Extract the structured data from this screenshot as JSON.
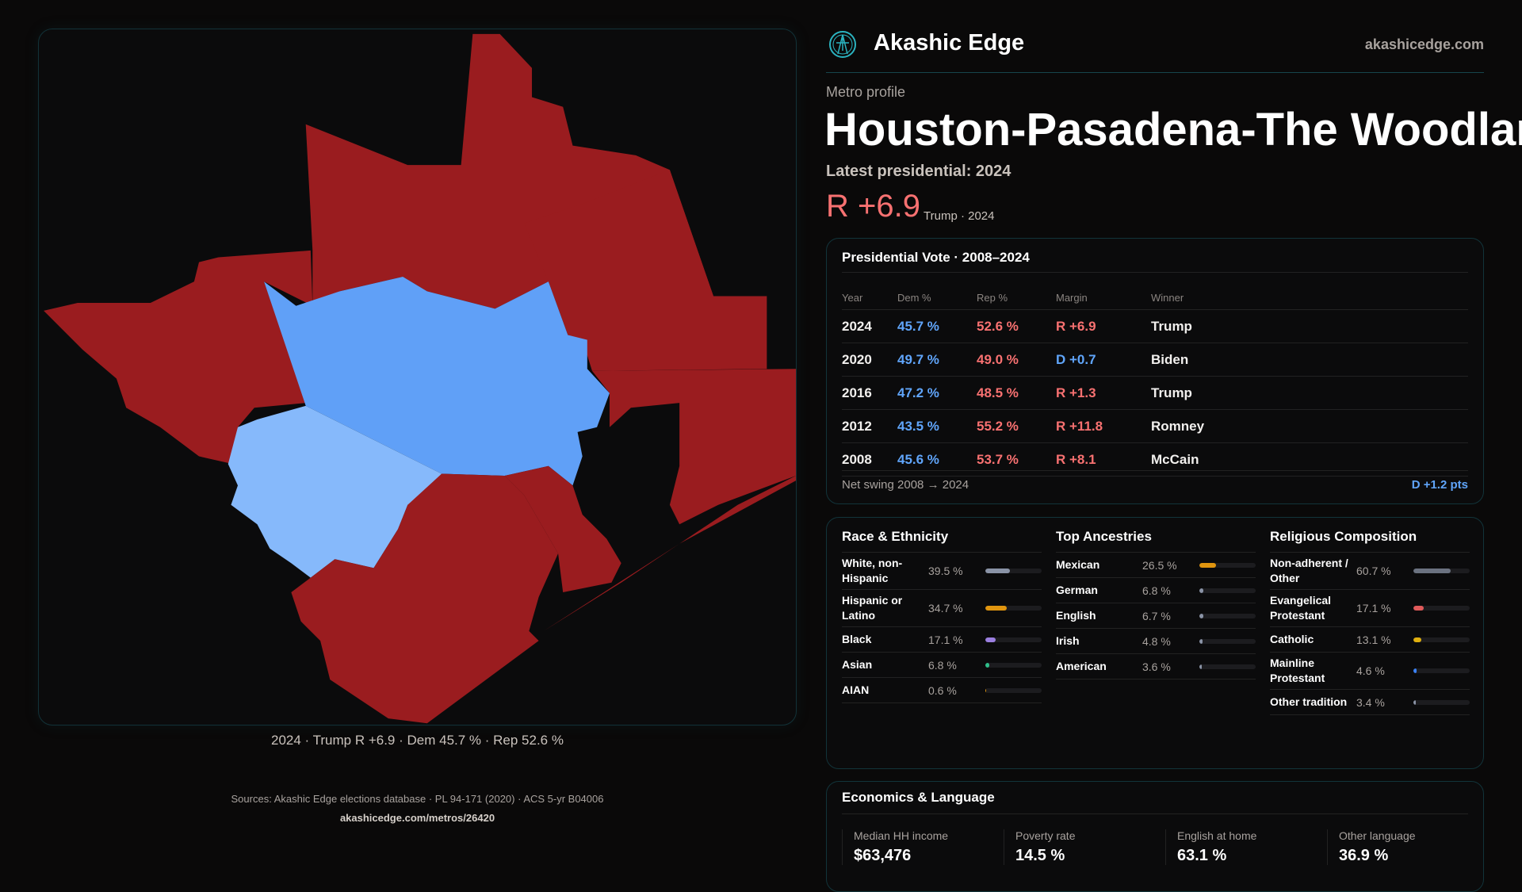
{
  "brand": {
    "name": "Akashic Edge",
    "url": "akashicedge.com",
    "logo_icon": "akashic-edge-logo-icon"
  },
  "header": {
    "kicker": "Metro profile",
    "title": "Houston-Pasadena-The Woodlands",
    "latest_label": "Latest presidential: 2024",
    "margin": "R +6.9",
    "margin_sub": "Trump · 2024"
  },
  "map": {
    "caption": "2024 · Trump R +6.9 · Dem 45.7 % · Rep 52.6 %",
    "colors": {
      "rep": "#9a1c1f",
      "dem": "#60a0f7",
      "dem_lean": "#86b9fb"
    }
  },
  "vote": {
    "title": "Presidential Vote · 2008–2024",
    "headers": [
      "Year",
      "Dem %",
      "Rep %",
      "Margin",
      "Winner"
    ],
    "rows": [
      {
        "year": "2024",
        "dem": "45.7 %",
        "rep": "52.6 %",
        "margin": "R +6.9",
        "winner": "Trump",
        "party": "rep"
      },
      {
        "year": "2020",
        "dem": "49.7 %",
        "rep": "49.0 %",
        "margin": "D +0.7",
        "winner": "Biden",
        "party": "dem"
      },
      {
        "year": "2016",
        "dem": "47.2 %",
        "rep": "48.5 %",
        "margin": "R +1.3",
        "winner": "Trump",
        "party": "rep"
      },
      {
        "year": "2012",
        "dem": "43.5 %",
        "rep": "55.2 %",
        "margin": "R +11.8",
        "winner": "Romney",
        "party": "rep"
      },
      {
        "year": "2008",
        "dem": "45.6 %",
        "rep": "53.7 %",
        "margin": "R +8.1",
        "winner": "McCain",
        "party": "rep"
      }
    ],
    "swing_label": "Net swing 2008 → 2024",
    "swing_value": "D +1.2 pts"
  },
  "demographics": [
    {
      "title": "Race & Ethnicity",
      "items": [
        {
          "label": "White, non-Hispanic",
          "value": "39.5 %",
          "pct": 39.5,
          "color": "#8a93a6"
        },
        {
          "label": "Hispanic or Latino",
          "value": "34.7 %",
          "pct": 34.7,
          "color": "#e0950f"
        },
        {
          "label": "Black",
          "value": "17.1 %",
          "pct": 17.1,
          "color": "#9b7fe0"
        },
        {
          "label": "Asian",
          "value": "6.8 %",
          "pct": 6.8,
          "color": "#2fbf8a"
        },
        {
          "label": "AIAN",
          "value": "0.6 %",
          "pct": 0.6,
          "color": "#e0950f"
        }
      ]
    },
    {
      "title": "Top Ancestries",
      "items": [
        {
          "label": "Mexican",
          "value": "26.5 %",
          "pct": 26.5,
          "color": "#e0950f"
        },
        {
          "label": "German",
          "value": "6.8 %",
          "pct": 6.8,
          "color": "#8a93a6"
        },
        {
          "label": "English",
          "value": "6.7 %",
          "pct": 6.7,
          "color": "#8a93a6"
        },
        {
          "label": "Irish",
          "value": "4.8 %",
          "pct": 4.8,
          "color": "#8a93a6"
        },
        {
          "label": "American",
          "value": "3.6 %",
          "pct": 3.6,
          "color": "#8a93a6"
        }
      ]
    },
    {
      "title": "Religious Composition",
      "items": [
        {
          "label": "Non-adherent / Other",
          "value": "60.7 %",
          "pct": 60.7,
          "color": "#6b7280"
        },
        {
          "label": "Evangelical Protestant",
          "value": "17.1 %",
          "pct": 17.1,
          "color": "#e05a5a"
        },
        {
          "label": "Catholic",
          "value": "13.1 %",
          "pct": 13.1,
          "color": "#e0b00f"
        },
        {
          "label": "Mainline Protestant",
          "value": "4.6 %",
          "pct": 4.6,
          "color": "#3b82f6"
        },
        {
          "label": "Other tradition",
          "value": "3.4 %",
          "pct": 3.4,
          "color": "#8a93a6"
        }
      ]
    }
  ],
  "economics": {
    "title": "Economics & Language",
    "items": [
      {
        "label": "Median HH income",
        "value": "$63,476"
      },
      {
        "label": "Poverty rate",
        "value": "14.5 %"
      },
      {
        "label": "English at home",
        "value": "63.1 %"
      },
      {
        "label": "Other language",
        "value": "36.9 %"
      }
    ]
  },
  "footer": {
    "sources": "Sources: Akashic Edge elections database · PL 94-171 (2020) · ACS 5-yr B04006",
    "url": "akashicedge.com/metros/26420"
  }
}
